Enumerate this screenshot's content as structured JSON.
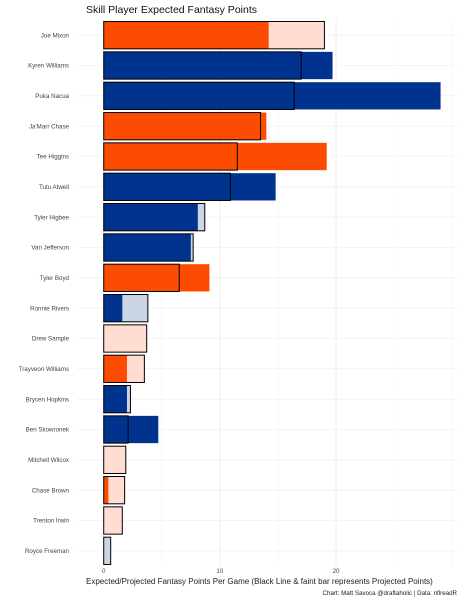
{
  "chart_data": {
    "type": "bar",
    "orientation": "horizontal",
    "title": "Skill Player Expected Fantasy Points",
    "xlabel": "Expected/Projected Fantasy Points Per Game (Black Line & faint bar represents Projected Points)",
    "ylabel": "",
    "caption": "Chart: Matt Savoca @draftaholic | Data: nflreadR",
    "xlim": [
      -2.3,
      30.5
    ],
    "xticks": [
      0,
      10,
      20
    ],
    "grid": true,
    "legend": "none",
    "colors": {
      "orange": "#FC4C02",
      "blue": "#00338D",
      "orange_faint": "#FFDDD3",
      "blue_faint": "#CCD5E6"
    },
    "categories": [
      "Joe Mixon",
      "Kyren Williams",
      "Puka Nacua",
      "Ja'Marr Chase",
      "Tee Higgins",
      "Tutu Atwell",
      "Tyler Higbee",
      "Van Jefferson",
      "Tyler Boyd",
      "Ronnie Rivers",
      "Drew Sample",
      "Trayveon Williams",
      "Brycen Hopkins",
      "Ben Skowronek",
      "Mitchell Wilcox",
      "Chase Brown",
      "Trenton Irwin",
      "Royce Freeman"
    ],
    "team": [
      "orange",
      "blue",
      "blue",
      "orange",
      "orange",
      "blue",
      "blue",
      "blue",
      "orange",
      "blue",
      "orange",
      "orange",
      "blue",
      "blue",
      "orange",
      "orange",
      "orange",
      "blue"
    ],
    "series": [
      {
        "name": "Expected",
        "values": [
          14.2,
          19.7,
          29.0,
          14.0,
          19.2,
          14.8,
          8.1,
          7.5,
          9.1,
          1.6,
          0.0,
          2.0,
          2.0,
          4.7,
          0.0,
          0.4,
          0.0,
          0.0
        ]
      },
      {
        "name": "Projected",
        "values": [
          19.0,
          17.0,
          16.4,
          13.5,
          11.5,
          10.9,
          8.7,
          7.7,
          6.5,
          3.8,
          3.7,
          3.5,
          2.3,
          2.1,
          1.9,
          1.8,
          1.6,
          0.6
        ]
      }
    ]
  }
}
